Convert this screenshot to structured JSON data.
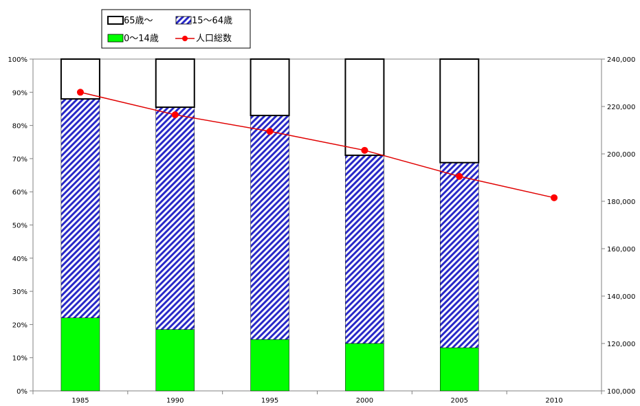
{
  "chart_data": {
    "type": "bar",
    "stacked": true,
    "categories": [
      "1985",
      "1990",
      "1995",
      "2000",
      "2005",
      "2010"
    ],
    "series": [
      {
        "name": "0～14歳",
        "type": "bar",
        "axis": "left",
        "color": "#00ff00",
        "values": [
          22,
          18.5,
          15.5,
          14.3,
          13,
          null
        ]
      },
      {
        "name": "15～64歳",
        "type": "bar",
        "axis": "left",
        "color": "#3333cc",
        "pattern": "diagonal-hatch",
        "values": [
          66,
          67,
          67.5,
          56.7,
          55.8,
          null
        ]
      },
      {
        "name": "65歳～",
        "type": "bar",
        "axis": "left",
        "color": "#ffffff",
        "values": [
          12,
          14.5,
          17,
          29,
          31.2,
          null
        ]
      },
      {
        "name": "人口総数",
        "type": "line",
        "axis": "right",
        "color": "#ff0000",
        "values": [
          226000,
          216500,
          209500,
          201500,
          190500,
          181500
        ]
      }
    ],
    "left_axis": {
      "ylim": [
        0,
        100
      ],
      "ticks": [
        "0%",
        "10%",
        "20%",
        "30%",
        "40%",
        "50%",
        "60%",
        "70%",
        "80%",
        "90%",
        "100%"
      ]
    },
    "right_axis": {
      "ylim": [
        100000,
        240000
      ],
      "ticks": [
        "100,000",
        "120,000",
        "140,000",
        "160,000",
        "180,000",
        "200,000",
        "220,000",
        "240,000"
      ]
    },
    "grid": false,
    "legend_position": "top-left",
    "title": "",
    "xlabel": "",
    "ylabel": ""
  },
  "legend": {
    "items": [
      {
        "label": "65歳～",
        "key": "senior"
      },
      {
        "label": "15～64歳",
        "key": "working"
      },
      {
        "label": "0～14歳",
        "key": "child"
      },
      {
        "label": "人口総数",
        "key": "total"
      }
    ]
  }
}
